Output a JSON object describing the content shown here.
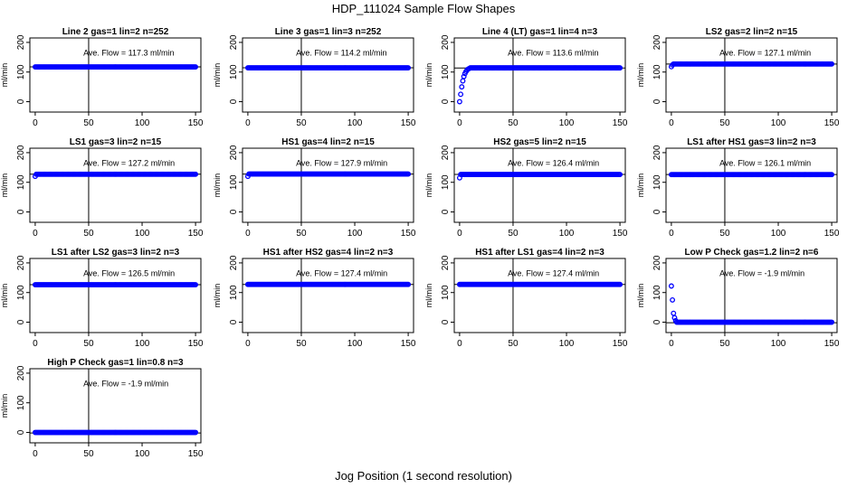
{
  "figure": {
    "title": "HDP_111024  Sample Flow Shapes",
    "xlabel": "Jog Position (1 second resolution)"
  },
  "chart_data": [
    {
      "type": "scatter",
      "title": "Line 2 gas=1 lin=2 n=252",
      "ylabel": "ml/min",
      "ylim": [
        -35,
        215
      ],
      "xlim": [
        -5,
        155
      ],
      "yticks": [
        0,
        100,
        200
      ],
      "xticks": [
        0,
        50,
        100,
        150
      ],
      "vline": 50,
      "avg": 117.3,
      "avg_label": "Ave. Flow =  117.3  ml/min",
      "start_values": [],
      "tail_value": 117.3
    },
    {
      "type": "scatter",
      "title": "Line 3 gas=1 lin=3 n=252",
      "ylabel": "ml/min",
      "ylim": [
        -35,
        215
      ],
      "xlim": [
        -5,
        155
      ],
      "yticks": [
        0,
        100,
        200
      ],
      "xticks": [
        0,
        50,
        100,
        150
      ],
      "vline": 50,
      "avg": 114.2,
      "avg_label": "Ave. Flow =  114.2  ml/min",
      "start_values": [],
      "tail_value": 114.2
    },
    {
      "type": "scatter",
      "title": "Line 4 (LT) gas=1 lin=4 n=3",
      "ylabel": "ml/min",
      "ylim": [
        -35,
        215
      ],
      "xlim": [
        -5,
        155
      ],
      "yticks": [
        0,
        100,
        200
      ],
      "xticks": [
        0,
        50,
        100,
        150
      ],
      "vline": 50,
      "avg": 113.6,
      "avg_label": "Ave. Flow =  113.6  ml/min",
      "start_values": [
        0,
        25,
        50,
        70,
        85,
        95,
        102,
        107,
        110,
        112
      ],
      "tail_value": 114
    },
    {
      "type": "scatter",
      "title": "LS2 gas=2 lin=2 n=15",
      "ylabel": "ml/min",
      "ylim": [
        -35,
        215
      ],
      "xlim": [
        -5,
        155
      ],
      "yticks": [
        0,
        100,
        200
      ],
      "xticks": [
        0,
        50,
        100,
        150
      ],
      "vline": 50,
      "avg": 127.1,
      "avg_label": "Ave. Flow =  127.1  ml/min",
      "start_values": [
        118,
        124
      ],
      "tail_value": 127.1
    },
    {
      "type": "scatter",
      "title": "LS1 gas=3 lin=2 n=15",
      "ylabel": "ml/min",
      "ylim": [
        -35,
        215
      ],
      "xlim": [
        -5,
        155
      ],
      "yticks": [
        0,
        100,
        200
      ],
      "xticks": [
        0,
        50,
        100,
        150
      ],
      "vline": 50,
      "avg": 127.2,
      "avg_label": "Ave. Flow =  127.2  ml/min",
      "start_values": [
        120
      ],
      "tail_value": 127.2
    },
    {
      "type": "scatter",
      "title": "HS1 gas=4 lin=2 n=15",
      "ylabel": "ml/min",
      "ylim": [
        -35,
        215
      ],
      "xlim": [
        -5,
        155
      ],
      "yticks": [
        0,
        100,
        200
      ],
      "xticks": [
        0,
        50,
        100,
        150
      ],
      "vline": 50,
      "avg": 127.9,
      "avg_label": "Ave. Flow =  127.9  ml/min",
      "start_values": [
        120
      ],
      "tail_value": 127.9
    },
    {
      "type": "scatter",
      "title": "HS2 gas=5 lin=2 n=15",
      "ylabel": "ml/min",
      "ylim": [
        -35,
        215
      ],
      "xlim": [
        -5,
        155
      ],
      "yticks": [
        0,
        100,
        200
      ],
      "xticks": [
        0,
        50,
        100,
        150
      ],
      "vline": 50,
      "avg": 126.4,
      "avg_label": "Ave. Flow =  126.4  ml/min",
      "start_values": [
        115
      ],
      "tail_value": 126.4
    },
    {
      "type": "scatter",
      "title": "LS1 after HS1 gas=3 lin=2 n=3",
      "ylabel": "ml/min",
      "ylim": [
        -35,
        215
      ],
      "xlim": [
        -5,
        155
      ],
      "yticks": [
        0,
        100,
        200
      ],
      "xticks": [
        0,
        50,
        100,
        150
      ],
      "vline": 50,
      "avg": 126.1,
      "avg_label": "Ave. Flow =  126.1  ml/min",
      "start_values": [],
      "tail_value": 126.1
    },
    {
      "type": "scatter",
      "title": "LS1 after LS2 gas=3 lin=2 n=3",
      "ylabel": "ml/min",
      "ylim": [
        -35,
        215
      ],
      "xlim": [
        -5,
        155
      ],
      "yticks": [
        0,
        100,
        200
      ],
      "xticks": [
        0,
        50,
        100,
        150
      ],
      "vline": 50,
      "avg": 126.5,
      "avg_label": "Ave. Flow =  126.5  ml/min",
      "start_values": [],
      "tail_value": 126.5
    },
    {
      "type": "scatter",
      "title": "HS1 after HS2 gas=4 lin=2 n=3",
      "ylabel": "ml/min",
      "ylim": [
        -35,
        215
      ],
      "xlim": [
        -5,
        155
      ],
      "yticks": [
        0,
        100,
        200
      ],
      "xticks": [
        0,
        50,
        100,
        150
      ],
      "vline": 50,
      "avg": 127.4,
      "avg_label": "Ave. Flow =  127.4  ml/min",
      "start_values": [],
      "tail_value": 127.4
    },
    {
      "type": "scatter",
      "title": "HS1 after LS1 gas=4 lin=2 n=3",
      "ylabel": "ml/min",
      "ylim": [
        -35,
        215
      ],
      "xlim": [
        -5,
        155
      ],
      "yticks": [
        0,
        100,
        200
      ],
      "xticks": [
        0,
        50,
        100,
        150
      ],
      "vline": 50,
      "avg": 127.4,
      "avg_label": "Ave. Flow =  127.4  ml/min",
      "start_values": [],
      "tail_value": 127.4
    },
    {
      "type": "scatter",
      "title": "Low P Check gas=1.2 lin=2 n=6",
      "ylabel": "ml/min",
      "ylim": [
        -35,
        215
      ],
      "xlim": [
        -5,
        155
      ],
      "yticks": [
        0,
        100,
        200
      ],
      "xticks": [
        0,
        50,
        100,
        150
      ],
      "vline": 50,
      "avg": -1.9,
      "avg_label": "Ave. Flow =  -1.9  ml/min",
      "start_values": [
        122,
        75,
        30,
        15,
        5
      ],
      "tail_value": 0
    },
    {
      "type": "scatter",
      "title": "High P Check gas=1 lin=0.8 n=3",
      "ylabel": "ml/min",
      "ylim": [
        -35,
        215
      ],
      "xlim": [
        -5,
        155
      ],
      "yticks": [
        0,
        100,
        200
      ],
      "xticks": [
        0,
        50,
        100,
        150
      ],
      "vline": 50,
      "avg": -1.9,
      "avg_label": "Ave. Flow =  -1.9  ml/min",
      "start_values": [],
      "tail_value": 0
    }
  ],
  "colors": {
    "points": "#0000ff",
    "axes": "#000000",
    "background": "#ffffff"
  }
}
